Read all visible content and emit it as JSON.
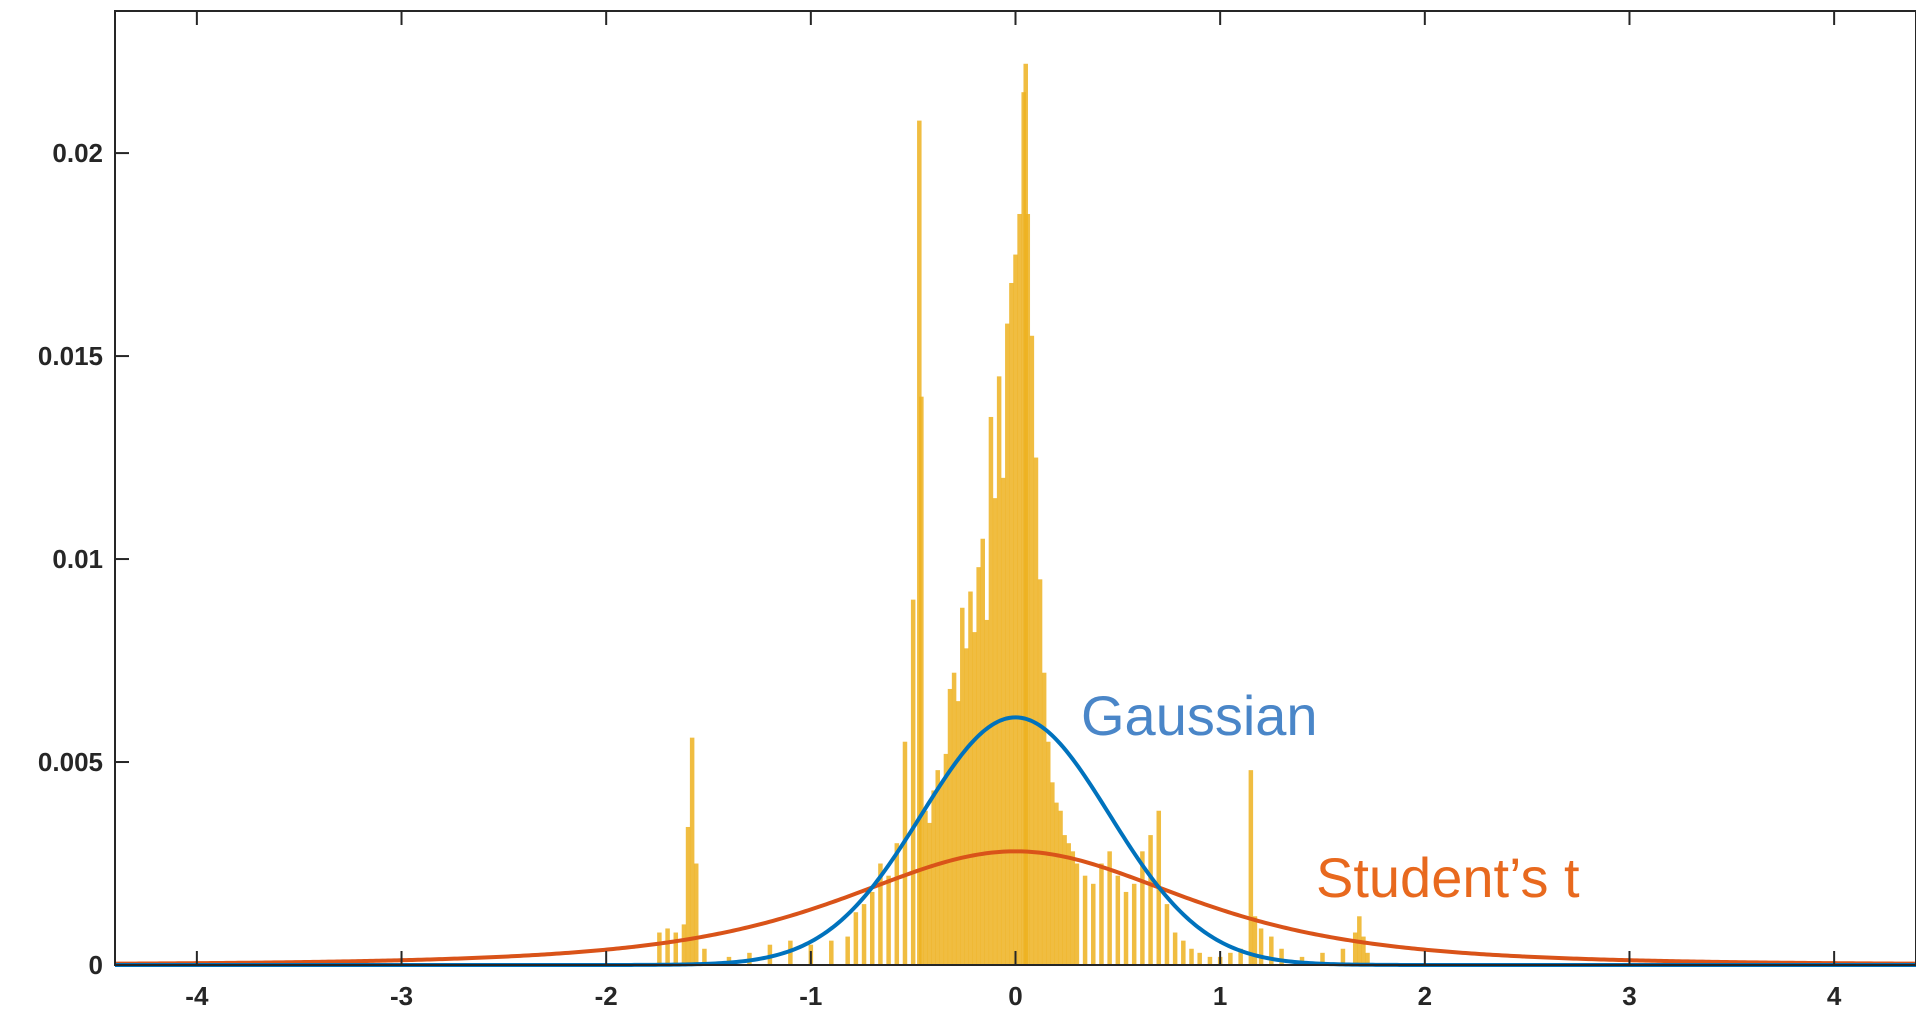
{
  "chart_data": {
    "type": "bar",
    "xlim": [
      -4.4,
      4.4
    ],
    "ylim": [
      0,
      0.0235
    ],
    "x_ticks": [
      -4,
      -3,
      -2,
      -1,
      0,
      1,
      2,
      3,
      4
    ],
    "x_tick_labels": [
      "-4",
      "-3",
      "-2",
      "-1",
      "0",
      "1",
      "2",
      "3",
      "4"
    ],
    "y_ticks": [
      0,
      0.005,
      0.01,
      0.015,
      0.02
    ],
    "y_tick_labels": [
      "0",
      "0.005",
      "0.01",
      "0.015",
      "0.02"
    ],
    "grid": false,
    "colors": {
      "histogram": "#EDB120",
      "gaussian": "#0072BD",
      "student_t": "#D95319",
      "gaussian_label": "#4A86C8",
      "student_t_label": "#E8691E",
      "axes": "#262626"
    },
    "histogram": {
      "x": [
        -1.74,
        -1.7,
        -1.66,
        -1.62,
        -1.6,
        -1.58,
        -1.56,
        -1.52,
        -1.4,
        -1.3,
        -1.2,
        -1.1,
        -1.0,
        -0.9,
        -0.82,
        -0.78,
        -0.74,
        -0.7,
        -0.66,
        -0.62,
        -0.58,
        -0.54,
        -0.5,
        -0.47,
        -0.46,
        -0.44,
        -0.42,
        -0.4,
        -0.38,
        -0.36,
        -0.34,
        -0.32,
        -0.3,
        -0.28,
        -0.26,
        -0.24,
        -0.22,
        -0.2,
        -0.18,
        -0.16,
        -0.14,
        -0.12,
        -0.1,
        -0.08,
        -0.06,
        -0.04,
        -0.02,
        0.0,
        0.02,
        0.04,
        0.05,
        0.06,
        0.08,
        0.1,
        0.12,
        0.14,
        0.16,
        0.18,
        0.2,
        0.22,
        0.24,
        0.26,
        0.28,
        0.3,
        0.34,
        0.38,
        0.42,
        0.46,
        0.5,
        0.54,
        0.58,
        0.62,
        0.66,
        0.7,
        0.74,
        0.78,
        0.82,
        0.86,
        0.9,
        0.95,
        1.0,
        1.05,
        1.1,
        1.15,
        1.17,
        1.2,
        1.25,
        1.3,
        1.4,
        1.5,
        1.6,
        1.66,
        1.68,
        1.7,
        1.72
      ],
      "values": [
        0.0008,
        0.0009,
        0.0008,
        0.001,
        0.0034,
        0.0056,
        0.0025,
        0.0004,
        0.0002,
        0.0003,
        0.0005,
        0.0006,
        0.0005,
        0.0006,
        0.0007,
        0.0013,
        0.0015,
        0.0018,
        0.0025,
        0.0022,
        0.003,
        0.0055,
        0.009,
        0.0208,
        0.014,
        0.0038,
        0.0035,
        0.0043,
        0.0048,
        0.0045,
        0.0052,
        0.0068,
        0.0072,
        0.0065,
        0.0088,
        0.0078,
        0.0092,
        0.0082,
        0.0098,
        0.0105,
        0.0085,
        0.0135,
        0.0115,
        0.0145,
        0.012,
        0.0158,
        0.0168,
        0.0175,
        0.0185,
        0.0215,
        0.0222,
        0.0185,
        0.0155,
        0.0125,
        0.0095,
        0.0072,
        0.0055,
        0.0045,
        0.004,
        0.0038,
        0.0032,
        0.003,
        0.0028,
        0.0025,
        0.0022,
        0.002,
        0.0025,
        0.0028,
        0.0022,
        0.0018,
        0.002,
        0.0028,
        0.0032,
        0.0038,
        0.0015,
        0.0008,
        0.0006,
        0.0004,
        0.0003,
        0.0002,
        0.0002,
        0.0003,
        0.0004,
        0.0048,
        0.0012,
        0.0009,
        0.0007,
        0.0004,
        0.0002,
        0.0003,
        0.0004,
        0.0008,
        0.0012,
        0.0007,
        0.0003
      ]
    },
    "series": [
      {
        "name": "Gaussian",
        "kind": "line",
        "mean": 0,
        "sd": 0.46,
        "peak": 0.0061
      },
      {
        "name": "Student’s t",
        "kind": "line",
        "mean": 0,
        "scale": 0.88,
        "df": 3,
        "peak": 0.0028
      }
    ]
  }
}
